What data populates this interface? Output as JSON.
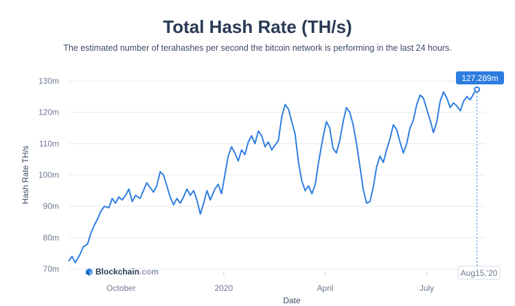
{
  "page": {
    "title": "Total Hash Rate (TH/s)",
    "subtitle": "The estimated number of terahashes per second the bitcoin network is performing in the last 24 hours."
  },
  "watermark": {
    "name": "Blockchain",
    "domain": ".com",
    "icon": "blockchain-cube-icon"
  },
  "tooltip": {
    "value_label": "127.289m",
    "date_label": "Aug15,'20"
  },
  "colors": {
    "line": "#2d7de0",
    "badge": "#2d7de0",
    "grid": "#e6eaf0",
    "text": "#2a3a55"
  },
  "chart_data": {
    "type": "line",
    "title": "Total Hash Rate (TH/s)",
    "xlabel": "Date",
    "ylabel": "Hash Rate TH/s",
    "ylim": [
      70,
      130
    ],
    "y_ticks": [
      "70m",
      "80m",
      "90m",
      "100m",
      "110m",
      "120m",
      "130m"
    ],
    "y_tick_values": [
      70,
      80,
      90,
      100,
      110,
      120,
      130
    ],
    "x_ticks": [
      {
        "label": "October",
        "x": "2019-10-01"
      },
      {
        "label": "2020",
        "x": "2020-01-01"
      },
      {
        "label": "April",
        "x": "2020-04-01"
      },
      {
        "label": "July",
        "x": "2020-07-01"
      }
    ],
    "xlim": [
      "2019-08-15",
      "2020-08-22"
    ],
    "grid": true,
    "series": [
      {
        "name": "",
        "points": [
          [
            "2019-08-15",
            72.5
          ],
          [
            "2019-08-18",
            74.0
          ],
          [
            "2019-08-21",
            72.0
          ],
          [
            "2019-08-25",
            74.5
          ],
          [
            "2019-08-28",
            77.0
          ],
          [
            "2019-09-01",
            78.0
          ],
          [
            "2019-09-04",
            81.5
          ],
          [
            "2019-09-07",
            84.0
          ],
          [
            "2019-09-10",
            86.0
          ],
          [
            "2019-09-13",
            88.5
          ],
          [
            "2019-09-16",
            90.0
          ],
          [
            "2019-09-20",
            89.5
          ],
          [
            "2019-09-23",
            92.5
          ],
          [
            "2019-09-26",
            91.0
          ],
          [
            "2019-09-29",
            93.0
          ],
          [
            "2019-10-02",
            92.0
          ],
          [
            "2019-10-05",
            93.5
          ],
          [
            "2019-10-08",
            95.5
          ],
          [
            "2019-10-11",
            91.5
          ],
          [
            "2019-10-14",
            93.5
          ],
          [
            "2019-10-18",
            92.5
          ],
          [
            "2019-10-21",
            95.0
          ],
          [
            "2019-10-24",
            97.5
          ],
          [
            "2019-10-27",
            96.0
          ],
          [
            "2019-10-30",
            94.5
          ],
          [
            "2019-11-02",
            96.5
          ],
          [
            "2019-11-05",
            101.0
          ],
          [
            "2019-11-08",
            100.0
          ],
          [
            "2019-11-11",
            96.5
          ],
          [
            "2019-11-14",
            93.0
          ],
          [
            "2019-11-17",
            90.5
          ],
          [
            "2019-11-20",
            92.5
          ],
          [
            "2019-11-23",
            91.0
          ],
          [
            "2019-11-26",
            93.0
          ],
          [
            "2019-11-29",
            95.5
          ],
          [
            "2019-12-02",
            93.5
          ],
          [
            "2019-12-05",
            95.0
          ],
          [
            "2019-12-08",
            92.0
          ],
          [
            "2019-12-11",
            87.5
          ],
          [
            "2019-12-14",
            91.0
          ],
          [
            "2019-12-17",
            95.0
          ],
          [
            "2019-12-20",
            92.0
          ],
          [
            "2019-12-24",
            95.5
          ],
          [
            "2019-12-27",
            97.0
          ],
          [
            "2019-12-30",
            94.0
          ],
          [
            "2020-01-02",
            100.0
          ],
          [
            "2020-01-05",
            106.0
          ],
          [
            "2020-01-08",
            109.0
          ],
          [
            "2020-01-11",
            107.0
          ],
          [
            "2020-01-14",
            104.5
          ],
          [
            "2020-01-17",
            108.0
          ],
          [
            "2020-01-20",
            106.5
          ],
          [
            "2020-01-23",
            110.5
          ],
          [
            "2020-01-26",
            112.5
          ],
          [
            "2020-01-29",
            110.0
          ],
          [
            "2020-02-01",
            114.0
          ],
          [
            "2020-02-04",
            112.5
          ],
          [
            "2020-02-07",
            109.0
          ],
          [
            "2020-02-10",
            110.5
          ],
          [
            "2020-02-13",
            108.0
          ],
          [
            "2020-02-16",
            109.5
          ],
          [
            "2020-02-19",
            111.0
          ],
          [
            "2020-02-22",
            118.5
          ],
          [
            "2020-02-25",
            122.5
          ],
          [
            "2020-02-28",
            121.0
          ],
          [
            "2020-03-02",
            117.0
          ],
          [
            "2020-03-05",
            113.0
          ],
          [
            "2020-03-08",
            104.0
          ],
          [
            "2020-03-11",
            98.0
          ],
          [
            "2020-03-14",
            95.0
          ],
          [
            "2020-03-17",
            96.5
          ],
          [
            "2020-03-20",
            94.0
          ],
          [
            "2020-03-23",
            97.0
          ],
          [
            "2020-03-26",
            104.0
          ],
          [
            "2020-03-30",
            112.0
          ],
          [
            "2020-04-02",
            117.0
          ],
          [
            "2020-04-05",
            115.0
          ],
          [
            "2020-04-08",
            108.5
          ],
          [
            "2020-04-11",
            107.0
          ],
          [
            "2020-04-14",
            111.0
          ],
          [
            "2020-04-17",
            117.0
          ],
          [
            "2020-04-20",
            121.5
          ],
          [
            "2020-04-23",
            120.0
          ],
          [
            "2020-04-26",
            116.0
          ],
          [
            "2020-04-29",
            110.0
          ],
          [
            "2020-05-02",
            103.0
          ],
          [
            "2020-05-05",
            95.5
          ],
          [
            "2020-05-08",
            91.0
          ],
          [
            "2020-05-11",
            91.5
          ],
          [
            "2020-05-14",
            96.0
          ],
          [
            "2020-05-17",
            102.5
          ],
          [
            "2020-05-20",
            106.0
          ],
          [
            "2020-05-23",
            104.0
          ],
          [
            "2020-05-26",
            108.0
          ],
          [
            "2020-05-29",
            111.5
          ],
          [
            "2020-06-01",
            116.0
          ],
          [
            "2020-06-04",
            114.5
          ],
          [
            "2020-06-07",
            110.5
          ],
          [
            "2020-06-10",
            107.0
          ],
          [
            "2020-06-13",
            110.0
          ],
          [
            "2020-06-16",
            115.0
          ],
          [
            "2020-06-19",
            117.5
          ],
          [
            "2020-06-22",
            122.5
          ],
          [
            "2020-06-25",
            125.5
          ],
          [
            "2020-06-28",
            124.5
          ],
          [
            "2020-07-01",
            121.0
          ],
          [
            "2020-07-04",
            117.5
          ],
          [
            "2020-07-07",
            113.5
          ],
          [
            "2020-07-10",
            117.0
          ],
          [
            "2020-07-13",
            123.5
          ],
          [
            "2020-07-16",
            126.5
          ],
          [
            "2020-07-19",
            124.5
          ],
          [
            "2020-07-22",
            121.5
          ],
          [
            "2020-07-25",
            123.0
          ],
          [
            "2020-07-28",
            122.0
          ],
          [
            "2020-07-31",
            120.5
          ],
          [
            "2020-08-03",
            123.5
          ],
          [
            "2020-08-06",
            125.0
          ],
          [
            "2020-08-09",
            124.0
          ],
          [
            "2020-08-12",
            126.0
          ],
          [
            "2020-08-15",
            127.289
          ]
        ]
      }
    ]
  }
}
